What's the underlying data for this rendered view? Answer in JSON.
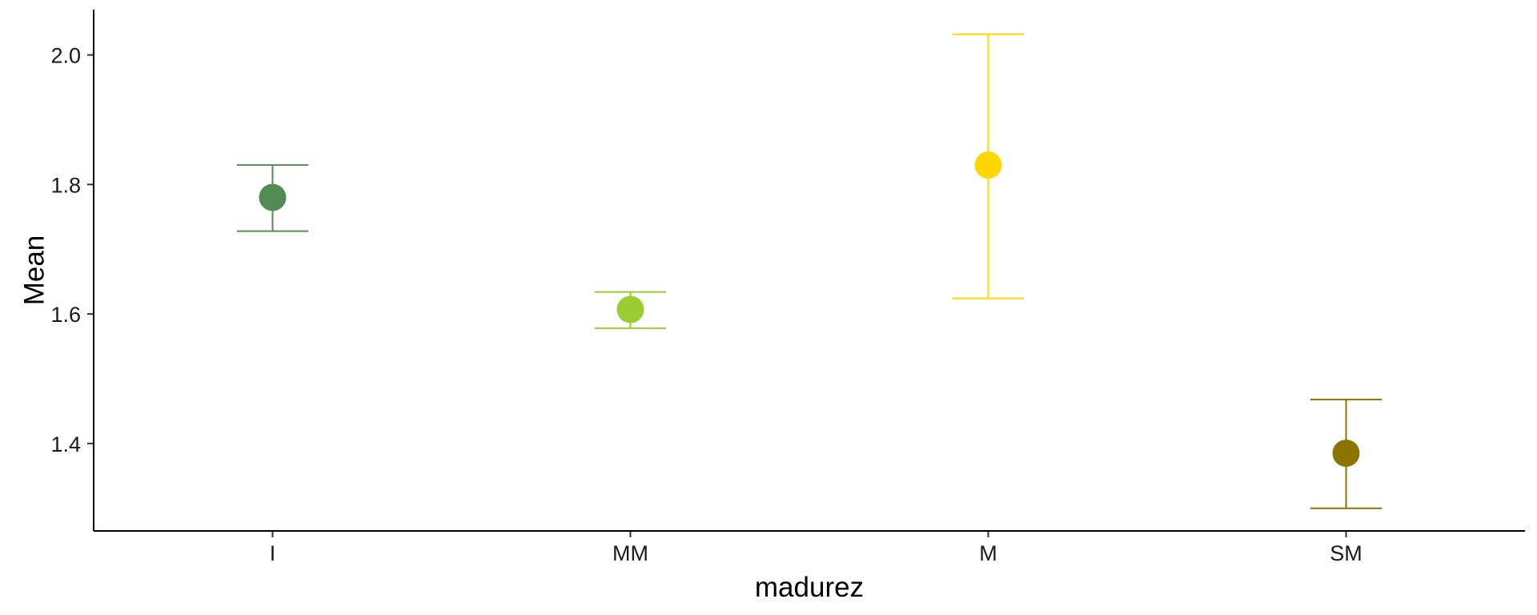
{
  "chart_data": {
    "type": "errorbar",
    "xlabel": "madurez",
    "ylabel": "Mean",
    "categories": [
      "I",
      "MM",
      "M",
      "SM"
    ],
    "values": [
      1.78,
      1.607,
      1.83,
      1.385
    ],
    "lower": [
      1.728,
      1.578,
      1.624,
      1.3
    ],
    "upper": [
      1.83,
      1.634,
      2.032,
      1.468
    ],
    "colors": [
      "#548B54",
      "#9ACD32",
      "#FFD700",
      "#8B7500"
    ],
    "ylim": [
      1.265,
      2.07
    ],
    "yticks": [
      1.4,
      1.6,
      1.8,
      2.0
    ],
    "ytick_labels": [
      "1.4",
      "1.6",
      "1.8",
      "2.0"
    ],
    "grid": false,
    "legend": "none"
  }
}
